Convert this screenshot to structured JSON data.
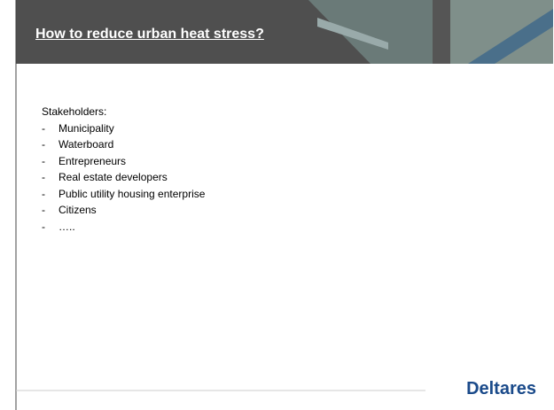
{
  "header": {
    "title": "How to reduce urban heat stress?"
  },
  "body": {
    "heading": "Stakeholders:",
    "items": [
      "Municipality",
      "Waterboard",
      "Entrepreneurs",
      "Real estate developers",
      "Public utility housing enterprise",
      "Citizens",
      "….."
    ]
  },
  "footer": {
    "logo": "Deltares"
  }
}
